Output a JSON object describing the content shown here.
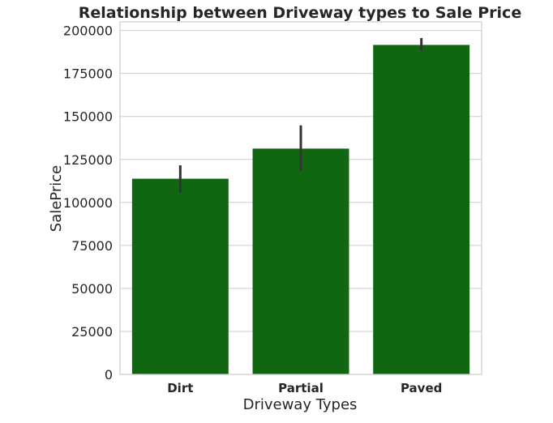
{
  "chart_data": {
    "type": "bar",
    "title": "Relationship between Driveway types to Sale Price",
    "xlabel": "Driveway Types",
    "ylabel": "SalePrice",
    "categories": [
      "Dirt",
      "Partial",
      "Paved"
    ],
    "values": [
      113800,
      131300,
      191600
    ],
    "error_bars": [
      {
        "low": 105800,
        "high": 121600
      },
      {
        "low": 118600,
        "high": 144800
      },
      {
        "low": 188300,
        "high": 195600
      }
    ],
    "ylim": [
      0,
      205000
    ],
    "yticks": [
      0,
      25000,
      50000,
      75000,
      100000,
      125000,
      150000,
      175000,
      200000
    ],
    "ytick_labels": [
      "0",
      "25000",
      "50000",
      "75000",
      "100000",
      "125000",
      "150000",
      "175000",
      "200000"
    ],
    "grid": true,
    "colors": {
      "bar": "#116611",
      "error_bar": "#333333",
      "grid": "#cccccc",
      "spine": "#cccccc",
      "text": "#262626"
    }
  }
}
